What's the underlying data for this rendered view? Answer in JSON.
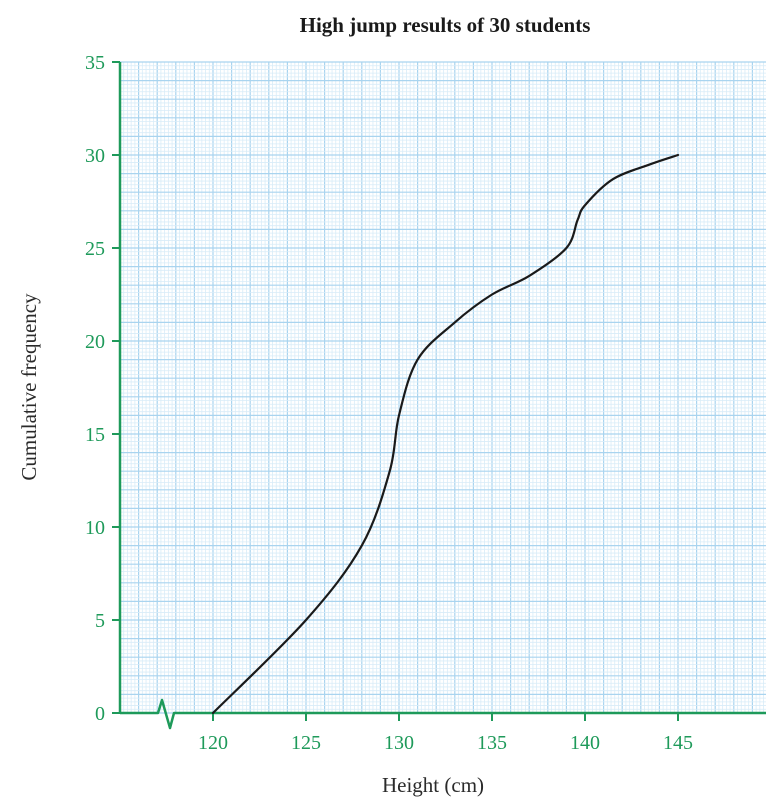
{
  "chart_data": {
    "type": "line",
    "title": "High jump results of 30 students",
    "xlabel": "Height (cm)",
    "ylabel": "Cumulative frequency",
    "xlim": [
      117,
      150
    ],
    "ylim": [
      0,
      35
    ],
    "x_ticks": [
      "120",
      "125",
      "130",
      "135",
      "140",
      "145"
    ],
    "y_ticks": [
      "0",
      "5",
      "10",
      "15",
      "20",
      "25",
      "30",
      "35"
    ],
    "axis_break": true,
    "grid": true,
    "series": [
      {
        "x": [
          120,
          125,
          128,
          129.5,
          130,
          131,
          133,
          135,
          137,
          139,
          139.6,
          140,
          141.5,
          143.5,
          145
        ],
        "y": [
          0,
          5,
          9,
          13,
          16,
          19,
          21,
          22.5,
          23.5,
          25,
          26.5,
          27.3,
          28.7,
          29.5,
          30
        ]
      }
    ],
    "colors": {
      "axis": "#1e9a5a",
      "grid_minor": "#d8ecf8",
      "grid_major": "#a9d4ef",
      "curve": "#1a1a1a"
    }
  }
}
